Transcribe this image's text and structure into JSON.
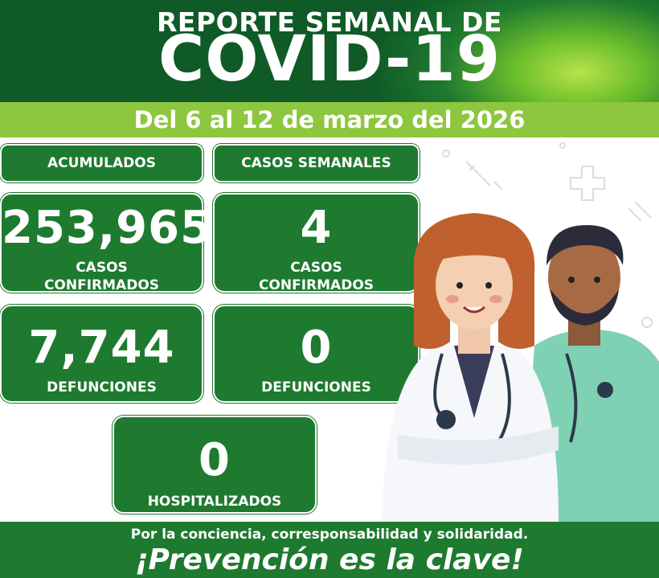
{
  "header": {
    "subtitle": "REPORTE SEMANAL DE",
    "title": "COVID-19"
  },
  "date_range": "Del  6 al 12 de marzo del 2026",
  "tags": {
    "accumulated": "ACUMULADOS",
    "weekly": "CASOS SEMANALES"
  },
  "accumulated": {
    "confirmed_value": "253,965",
    "confirmed_label_1": "CASOS",
    "confirmed_label_2": "CONFIRMADOS",
    "deaths_value": "7,744",
    "deaths_label": "DEFUNCIONES"
  },
  "weekly": {
    "confirmed_value": "4",
    "confirmed_label_1": "CASOS",
    "confirmed_label_2": "CONFIRMADOS",
    "deaths_value": "0",
    "deaths_label": "DEFUNCIONES"
  },
  "hospitalized": {
    "value": "0",
    "label": "HOSPITALIZADOS"
  },
  "footer": {
    "motto": "Por la conciencia, corresponsabilidad y solidaridad.",
    "slogan": "¡Prevención es la clave!"
  },
  "colors": {
    "dark_green": "#1e7a2f",
    "light_green": "#8dc63f",
    "header_glow": "#b7e34a"
  }
}
